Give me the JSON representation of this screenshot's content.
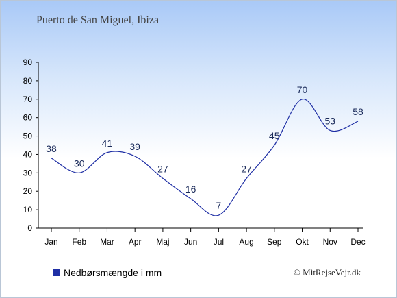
{
  "title": "Puerto de San Miguel, Ibiza",
  "legend_label": "Nedbørsmængde i mm",
  "credit": "© MitRejseVejr.dk",
  "colors": {
    "line": "#1f2fa5",
    "legend": "#1f2fa5"
  },
  "chart_data": {
    "type": "line",
    "categories": [
      "Jan",
      "Feb",
      "Mar",
      "Apr",
      "Maj",
      "Jun",
      "Jul",
      "Aug",
      "Sep",
      "Okt",
      "Nov",
      "Dec"
    ],
    "series": [
      {
        "name": "Nedbørsmængde i mm",
        "values": [
          38,
          30,
          41,
          39,
          27,
          16,
          7,
          27,
          45,
          70,
          53,
          58
        ]
      }
    ],
    "ylim": [
      0,
      90
    ],
    "yticks": [
      0,
      10,
      20,
      30,
      40,
      50,
      60,
      70,
      80,
      90
    ],
    "grid": false,
    "legend_position": "bottom-left"
  }
}
